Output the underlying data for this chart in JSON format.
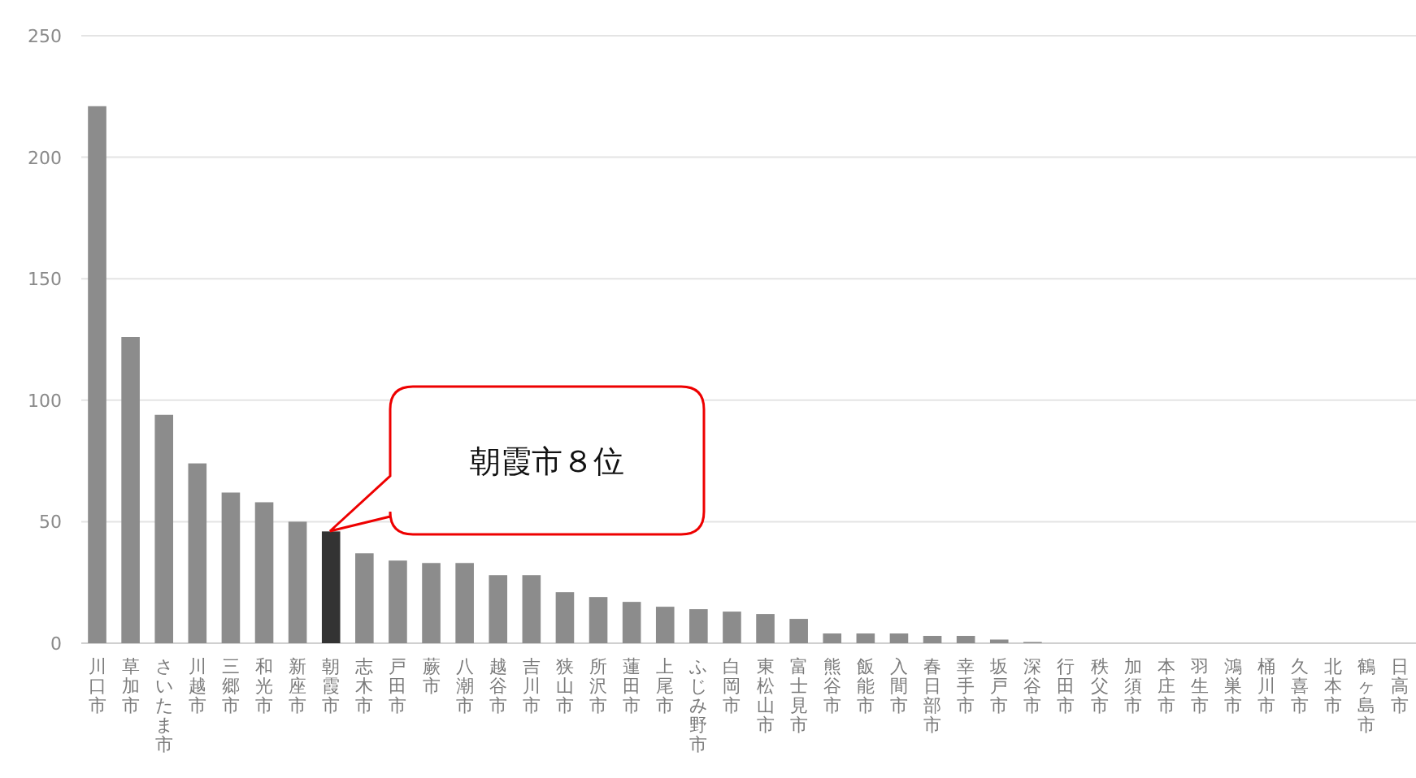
{
  "chart_data": {
    "type": "bar",
    "categories": [
      "川口市",
      "草加市",
      "さいたま市",
      "川越市",
      "三郷市",
      "和光市",
      "新座市",
      "朝霞市",
      "志木市",
      "戸田市",
      "蕨市",
      "八潮市",
      "越谷市",
      "吉川市",
      "狭山市",
      "所沢市",
      "蓮田市",
      "上尾市",
      "ふじみ野市",
      "白岡市",
      "東松山市",
      "富士見市",
      "熊谷市",
      "飯能市",
      "入間市",
      "春日部市",
      "幸手市",
      "坂戸市",
      "深谷市",
      "行田市",
      "秩父市",
      "加須市",
      "本庄市",
      "羽生市",
      "鴻巣市",
      "桶川市",
      "久喜市",
      "北本市",
      "鶴ヶ島市",
      "日高市"
    ],
    "values": [
      221,
      126,
      94,
      74,
      62,
      58,
      50,
      46,
      37,
      34,
      33,
      33,
      28,
      28,
      21,
      19,
      17,
      15,
      14,
      13,
      12,
      10,
      4,
      4,
      4,
      3,
      3,
      1.5,
      0.5,
      0,
      0,
      0,
      0,
      0,
      0,
      0,
      0,
      0,
      0,
      0
    ],
    "colors": [
      "#8c8c8c",
      "#8c8c8c",
      "#8c8c8c",
      "#8c8c8c",
      "#8c8c8c",
      "#8c8c8c",
      "#8c8c8c",
      "#333333",
      "#8c8c8c",
      "#8c8c8c",
      "#8c8c8c",
      "#8c8c8c",
      "#8c8c8c",
      "#8c8c8c",
      "#8c8c8c",
      "#8c8c8c",
      "#8c8c8c",
      "#8c8c8c",
      "#8c8c8c",
      "#8c8c8c",
      "#8c8c8c",
      "#8c8c8c",
      "#8c8c8c",
      "#8c8c8c",
      "#8c8c8c",
      "#8c8c8c",
      "#8c8c8c",
      "#8c8c8c",
      "#8c8c8c",
      "#8c8c8c",
      "#8c8c8c",
      "#8c8c8c",
      "#8c8c8c",
      "#8c8c8c",
      "#8c8c8c",
      "#8c8c8c",
      "#8c8c8c",
      "#8c8c8c",
      "#8c8c8c",
      "#8c8c8c"
    ],
    "ylim": [
      0,
      250
    ],
    "yticks": [
      0,
      50,
      100,
      150,
      200,
      250
    ],
    "grid": "y",
    "annotations": [
      "朝霞市８位"
    ]
  }
}
